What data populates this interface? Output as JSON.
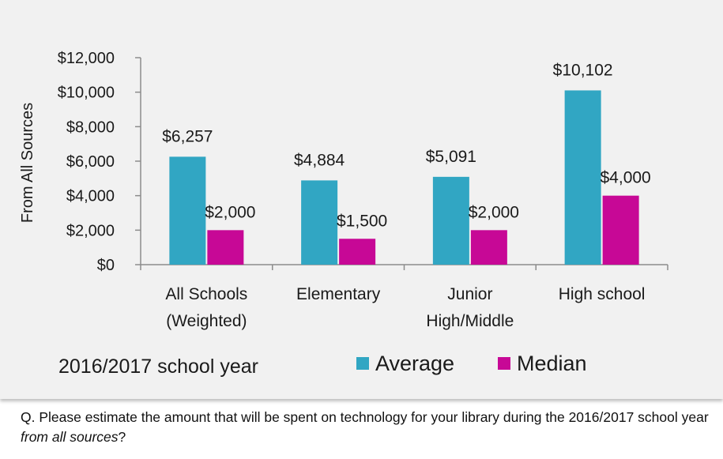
{
  "chart_data": {
    "type": "bar",
    "categories": [
      [
        "All Schools",
        "(Weighted)"
      ],
      [
        "Elementary"
      ],
      [
        "Junior",
        "High/Middle"
      ],
      [
        "High school"
      ]
    ],
    "series": [
      {
        "name": "Average",
        "color": "#31a6c3",
        "values": [
          6257,
          4884,
          5091,
          10102
        ],
        "labels": [
          "$6,257",
          "$4,884",
          "$5,091",
          "$10,102"
        ]
      },
      {
        "name": "Median",
        "color": "#c70896",
        "values": [
          2000,
          1500,
          2000,
          4000
        ],
        "labels": [
          "$2,000",
          "$1,500",
          "$2,000",
          "$4,000"
        ]
      }
    ],
    "ylabel": "From All Sources",
    "ylim": [
      0,
      12000
    ],
    "yticks": [
      0,
      2000,
      4000,
      6000,
      8000,
      10000,
      12000
    ],
    "ytick_labels": [
      "$0",
      "$2,000",
      "$4,000",
      "$6,000",
      "$8,000",
      "$10,000",
      "$12,000"
    ],
    "annotation": "2016/2017 school year",
    "legend_position": "bottom",
    "grid": false
  },
  "footnote": {
    "text_before": "Q. Please estimate the amount that will be spent on technology for your library during the 2016/2017 school year ",
    "text_em": "from all sources",
    "text_after": "?"
  }
}
